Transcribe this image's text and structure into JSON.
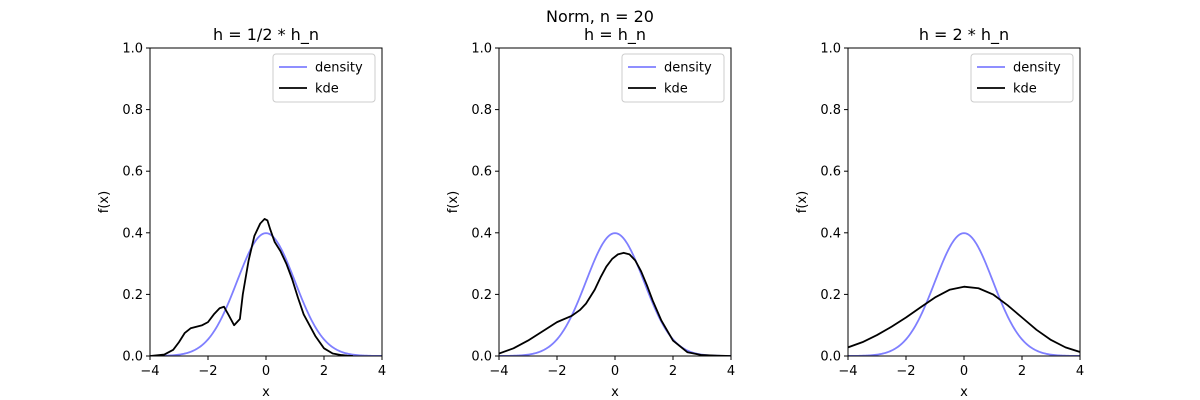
{
  "suptitle": "Norm, n = 20",
  "colors": {
    "density": "#7f7fff",
    "kde": "#000000",
    "legend_border": "#cccccc"
  },
  "chart_data": [
    {
      "type": "line",
      "title": "h = 1/2 * h_n",
      "xlabel": "x",
      "ylabel": "f(x)",
      "xlim": [
        -4,
        4
      ],
      "ylim": [
        0,
        1
      ],
      "xticks": [
        -4,
        -2,
        0,
        2,
        4
      ],
      "yticks": [
        0.0,
        0.2,
        0.4,
        0.6,
        0.8,
        1.0
      ],
      "legend": "top-right",
      "series": [
        {
          "name": "density",
          "function": "standard-normal-pdf"
        },
        {
          "name": "kde",
          "x": [
            -4.0,
            -3.5,
            -3.2,
            -3.0,
            -2.8,
            -2.6,
            -2.4,
            -2.2,
            -2.0,
            -1.8,
            -1.6,
            -1.45,
            -1.3,
            -1.1,
            -0.9,
            -0.8,
            -0.6,
            -0.4,
            -0.2,
            -0.05,
            0.05,
            0.15,
            0.3,
            0.5,
            0.7,
            0.9,
            1.1,
            1.3,
            1.5,
            1.7,
            2.0,
            2.3,
            2.6,
            2.8,
            3.0
          ],
          "y": [
            0.0,
            0.005,
            0.02,
            0.045,
            0.075,
            0.09,
            0.095,
            0.1,
            0.11,
            0.135,
            0.155,
            0.16,
            0.135,
            0.1,
            0.12,
            0.2,
            0.31,
            0.39,
            0.43,
            0.445,
            0.44,
            0.41,
            0.37,
            0.34,
            0.3,
            0.25,
            0.19,
            0.135,
            0.1,
            0.065,
            0.025,
            0.008,
            0.003,
            0.001,
            0.0
          ]
        }
      ]
    },
    {
      "type": "line",
      "title": "h = h_n",
      "xlabel": "x",
      "ylabel": "f(x)",
      "xlim": [
        -4,
        4
      ],
      "ylim": [
        0,
        1
      ],
      "xticks": [
        -4,
        -2,
        0,
        2,
        4
      ],
      "yticks": [
        0.0,
        0.2,
        0.4,
        0.6,
        0.8,
        1.0
      ],
      "legend": "top-right",
      "series": [
        {
          "name": "density",
          "function": "standard-normal-pdf"
        },
        {
          "name": "kde",
          "x": [
            -4.0,
            -3.5,
            -3.0,
            -2.5,
            -2.0,
            -1.5,
            -1.2,
            -1.0,
            -0.7,
            -0.5,
            -0.3,
            -0.1,
            0.1,
            0.3,
            0.5,
            0.7,
            0.9,
            1.1,
            1.3,
            1.6,
            2.0,
            2.5,
            3.0,
            3.5,
            4.0
          ],
          "y": [
            0.008,
            0.025,
            0.05,
            0.08,
            0.11,
            0.13,
            0.15,
            0.17,
            0.215,
            0.255,
            0.29,
            0.315,
            0.33,
            0.335,
            0.33,
            0.31,
            0.275,
            0.23,
            0.18,
            0.115,
            0.05,
            0.012,
            0.003,
            0.001,
            0.0
          ]
        }
      ]
    },
    {
      "type": "line",
      "title": "h = 2 * h_n",
      "xlabel": "x",
      "ylabel": "f(x)",
      "xlim": [
        -4,
        4
      ],
      "ylim": [
        0,
        1
      ],
      "xticks": [
        -4,
        -2,
        0,
        2,
        4
      ],
      "yticks": [
        0.0,
        0.2,
        0.4,
        0.6,
        0.8,
        1.0
      ],
      "legend": "top-right",
      "series": [
        {
          "name": "density",
          "function": "standard-normal-pdf"
        },
        {
          "name": "kde",
          "x": [
            -4.0,
            -3.5,
            -3.0,
            -2.5,
            -2.0,
            -1.5,
            -1.0,
            -0.5,
            0.0,
            0.5,
            1.0,
            1.5,
            2.0,
            2.5,
            3.0,
            3.5,
            4.0
          ],
          "y": [
            0.028,
            0.045,
            0.068,
            0.095,
            0.125,
            0.158,
            0.19,
            0.215,
            0.225,
            0.22,
            0.2,
            0.165,
            0.125,
            0.085,
            0.052,
            0.028,
            0.013
          ]
        }
      ]
    }
  ]
}
